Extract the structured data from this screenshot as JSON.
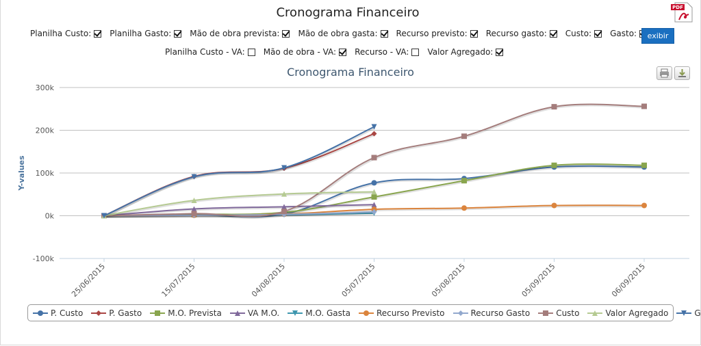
{
  "page": {
    "title": "Cronograma Financeiro"
  },
  "filters_row1": [
    {
      "label": "Planilha Custo:",
      "checked": true
    },
    {
      "label": "Planilha Gasto:",
      "checked": true
    },
    {
      "label": "Mão de obra prevista:",
      "checked": true
    },
    {
      "label": "Mão de obra gasta:",
      "checked": true
    },
    {
      "label": "Recurso previsto:",
      "checked": true
    },
    {
      "label": "Recurso gasto:",
      "checked": true
    },
    {
      "label": "Custo:",
      "checked": true
    },
    {
      "label": "Gasto:",
      "checked": true
    }
  ],
  "filters_row2": [
    {
      "label": "Planilha Custo - VA:",
      "checked": false
    },
    {
      "label": "Mão de obra - VA:",
      "checked": true
    },
    {
      "label": "Recurso - VA:",
      "checked": false
    },
    {
      "label": "Valor Agregado:",
      "checked": true
    }
  ],
  "exibir_button": "exibir",
  "chart_data": {
    "type": "line",
    "title": "Cronograma Financeiro",
    "ylabel": "Y-values",
    "xlabel": "",
    "categories": [
      "25/06/2015",
      "15/07/2015",
      "04/08/2015",
      "05/07/2015",
      "05/08/2015",
      "05/09/2015",
      "06/09/2015"
    ],
    "y_ticks": [
      "-100k",
      "0k",
      "100k",
      "200k",
      "300k"
    ],
    "ylim": [
      -100000,
      300000
    ],
    "grid": true,
    "legend_position": "bottom",
    "series": [
      {
        "name": "P. Custo",
        "color": "#4572a7",
        "marker": "circle",
        "values": [
          0,
          2000,
          4000,
          77000,
          87000,
          114000,
          114000
        ]
      },
      {
        "name": "P. Gasto",
        "color": "#aa4643",
        "marker": "diamond",
        "values": [
          0,
          92000,
          111000,
          192000,
          null,
          null,
          null
        ]
      },
      {
        "name": "M.O. Prevista",
        "color": "#89a54e",
        "marker": "square",
        "values": [
          0,
          3000,
          8000,
          44000,
          82000,
          118000,
          118000
        ]
      },
      {
        "name": "VA M.O.",
        "color": "#80699b",
        "marker": "triangle",
        "values": [
          0,
          16000,
          21000,
          26000,
          null,
          null,
          null
        ]
      },
      {
        "name": "M.O. Gasta",
        "color": "#3d96ae",
        "marker": "triangle-down",
        "values": [
          0,
          1000,
          2000,
          6000,
          null,
          null,
          null
        ]
      },
      {
        "name": "Recurso Previsto",
        "color": "#db843d",
        "marker": "circle",
        "values": [
          0,
          1000,
          4000,
          15000,
          18000,
          24000,
          24000
        ]
      },
      {
        "name": "Recurso Gasto",
        "color": "#92a8cd",
        "marker": "diamond",
        "values": [
          0,
          1000,
          3000,
          9000,
          null,
          null,
          null
        ]
      },
      {
        "name": "Custo",
        "color": "#a47d7c",
        "marker": "square",
        "values": [
          0,
          5000,
          10000,
          136000,
          186000,
          255000,
          256000
        ]
      },
      {
        "name": "Valor Agregado",
        "color": "#b5ca92",
        "marker": "triangle",
        "values": [
          0,
          36000,
          51000,
          56000,
          null,
          null,
          null
        ]
      },
      {
        "name": "Gasto",
        "color": "#4572a7",
        "marker": "triangle-down",
        "values": [
          0,
          91000,
          112000,
          208000,
          null,
          null,
          null
        ]
      }
    ]
  }
}
